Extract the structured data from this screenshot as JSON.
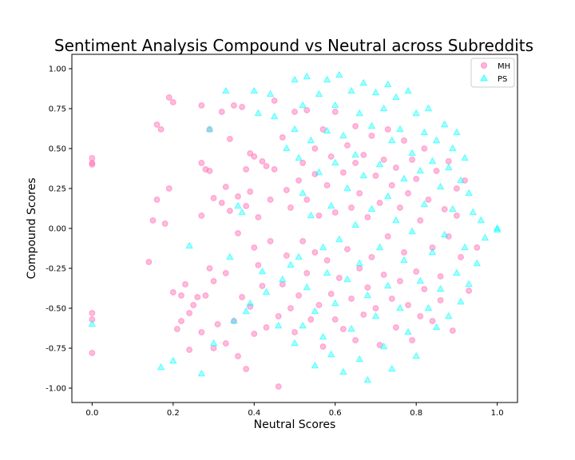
{
  "chart_data": {
    "type": "scatter",
    "title": "Sentiment Analysis Compound vs Neutral across Subreddits",
    "xlabel": "Neutral Scores",
    "ylabel": "Compound Scores",
    "xlim": [
      -0.05,
      1.05
    ],
    "ylim": [
      -1.09,
      1.09
    ],
    "xticks": [
      "0.0",
      "0.2",
      "0.4",
      "0.6",
      "0.8",
      "1.0"
    ],
    "yticks": [
      "-1.00",
      "-0.75",
      "-0.50",
      "-0.25",
      "0.00",
      "0.25",
      "0.50",
      "0.75",
      "1.00"
    ],
    "grid": false,
    "legend_position": "top-right",
    "series": [
      {
        "name": "MH",
        "marker": "circle",
        "color": "#ff69b4",
        "points": [
          [
            0.0,
            0.44
          ],
          [
            0.0,
            0.41
          ],
          [
            0.0,
            0.4
          ],
          [
            0.0,
            -0.53
          ],
          [
            0.0,
            -0.57
          ],
          [
            0.0,
            -0.78
          ],
          [
            0.14,
            -0.21
          ],
          [
            0.15,
            0.05
          ],
          [
            0.16,
            0.18
          ],
          [
            0.16,
            0.65
          ],
          [
            0.17,
            0.62
          ],
          [
            0.18,
            0.03
          ],
          [
            0.19,
            0.82
          ],
          [
            0.19,
            0.25
          ],
          [
            0.2,
            0.79
          ],
          [
            0.2,
            -0.4
          ],
          [
            0.21,
            -0.63
          ],
          [
            0.22,
            -0.58
          ],
          [
            0.22,
            -0.42
          ],
          [
            0.23,
            -0.35
          ],
          [
            0.24,
            -0.53
          ],
          [
            0.24,
            -0.76
          ],
          [
            0.25,
            -0.48
          ],
          [
            0.26,
            -0.43
          ],
          [
            0.27,
            0.77
          ],
          [
            0.27,
            0.41
          ],
          [
            0.27,
            0.08
          ],
          [
            0.27,
            -0.65
          ],
          [
            0.28,
            0.37
          ],
          [
            0.28,
            -0.42
          ],
          [
            0.29,
            0.62
          ],
          [
            0.29,
            0.36
          ],
          [
            0.29,
            -0.25
          ],
          [
            0.3,
            0.19
          ],
          [
            0.3,
            -0.33
          ],
          [
            0.3,
            -0.75
          ],
          [
            0.31,
            -0.6
          ],
          [
            0.32,
            0.73
          ],
          [
            0.32,
            0.16
          ],
          [
            0.33,
            0.26
          ],
          [
            0.33,
            -0.28
          ],
          [
            0.33,
            -0.72
          ],
          [
            0.34,
            0.56
          ],
          [
            0.34,
            0.11
          ],
          [
            0.35,
            0.77
          ],
          [
            0.35,
            -0.58
          ],
          [
            0.36,
            0.2
          ],
          [
            0.36,
            -0.03
          ],
          [
            0.36,
            -0.8
          ],
          [
            0.37,
            0.76
          ],
          [
            0.37,
            -0.43
          ],
          [
            0.38,
            0.37
          ],
          [
            0.38,
            0.14
          ],
          [
            0.38,
            -0.88
          ],
          [
            0.39,
            0.47
          ],
          [
            0.39,
            0.23
          ],
          [
            0.39,
            -0.49
          ],
          [
            0.4,
            0.45
          ],
          [
            0.4,
            -0.12
          ],
          [
            0.4,
            -0.66
          ],
          [
            0.41,
            0.07
          ],
          [
            0.41,
            -0.23
          ],
          [
            0.42,
            0.42
          ],
          [
            0.42,
            -0.36
          ],
          [
            0.43,
            0.39
          ],
          [
            0.43,
            -0.62
          ],
          [
            0.44,
            0.18
          ],
          [
            0.44,
            -0.08
          ],
          [
            0.45,
            0.8
          ],
          [
            0.45,
            0.37
          ],
          [
            0.46,
            -0.55
          ],
          [
            0.46,
            -0.99
          ],
          [
            0.47,
            0.57
          ],
          [
            0.47,
            -0.35
          ],
          [
            0.48,
            0.24
          ],
          [
            0.48,
            -0.17
          ],
          [
            0.49,
            -0.5
          ],
          [
            0.49,
            0.13
          ],
          [
            0.5,
            0.73
          ],
          [
            0.5,
            -0.65
          ],
          [
            0.51,
            0.3
          ],
          [
            0.51,
            -0.42
          ],
          [
            0.52,
            0.41
          ],
          [
            0.52,
            -0.08
          ],
          [
            0.53,
            0.74
          ],
          [
            0.53,
            0.18
          ],
          [
            0.53,
            -0.28
          ],
          [
            0.54,
            -0.57
          ],
          [
            0.55,
            0.5
          ],
          [
            0.55,
            0.34
          ],
          [
            0.55,
            -0.15
          ],
          [
            0.56,
            0.08
          ],
          [
            0.56,
            -0.48
          ],
          [
            0.57,
            0.62
          ],
          [
            0.57,
            -0.74
          ],
          [
            0.58,
            0.27
          ],
          [
            0.58,
            -0.2
          ],
          [
            0.59,
            0.45
          ],
          [
            0.59,
            -0.41
          ],
          [
            0.6,
            0.73
          ],
          [
            0.6,
            0.1
          ],
          [
            0.6,
            -0.57
          ],
          [
            0.61,
            -0.31
          ],
          [
            0.62,
            0.35
          ],
          [
            0.62,
            -0.63
          ],
          [
            0.63,
            0.52
          ],
          [
            0.63,
            -0.13
          ],
          [
            0.64,
            0.13
          ],
          [
            0.64,
            -0.44
          ],
          [
            0.65,
            0.64
          ],
          [
            0.65,
            0.41
          ],
          [
            0.65,
            -0.7
          ],
          [
            0.66,
            0.22
          ],
          [
            0.66,
            -0.25
          ],
          [
            0.67,
            0.46
          ],
          [
            0.67,
            -0.54
          ],
          [
            0.68,
            0.07
          ],
          [
            0.68,
            -0.37
          ],
          [
            0.69,
            0.58
          ],
          [
            0.69,
            -0.18
          ],
          [
            0.7,
            0.33
          ],
          [
            0.7,
            -0.5
          ],
          [
            0.71,
            0.16
          ],
          [
            0.71,
            -0.73
          ],
          [
            0.72,
            0.43
          ],
          [
            0.72,
            -0.29
          ],
          [
            0.73,
            0.62
          ],
          [
            0.73,
            -0.05
          ],
          [
            0.74,
            0.27
          ],
          [
            0.74,
            -0.44
          ],
          [
            0.75,
            0.38
          ],
          [
            0.75,
            -0.62
          ],
          [
            0.76,
            0.13
          ],
          [
            0.76,
            -0.33
          ],
          [
            0.77,
            0.55
          ],
          [
            0.77,
            -0.15
          ],
          [
            0.78,
            0.22
          ],
          [
            0.78,
            -0.48
          ],
          [
            0.79,
            0.43
          ],
          [
            0.79,
            -0.7
          ],
          [
            0.8,
            0.31
          ],
          [
            0.8,
            -0.27
          ],
          [
            0.81,
            0.05
          ],
          [
            0.81,
            -0.55
          ],
          [
            0.82,
            0.5
          ],
          [
            0.82,
            -0.38
          ],
          [
            0.83,
            0.18
          ],
          [
            0.84,
            -0.12
          ],
          [
            0.84,
            -0.58
          ],
          [
            0.85,
            0.36
          ],
          [
            0.86,
            -0.3
          ],
          [
            0.86,
            -0.45
          ],
          [
            0.87,
            0.12
          ],
          [
            0.88,
            0.42
          ],
          [
            0.88,
            -0.05
          ],
          [
            0.89,
            -0.64
          ],
          [
            0.9,
            0.25
          ],
          [
            0.9,
            0.08
          ],
          [
            0.91,
            -0.18
          ],
          [
            0.92,
            0.3
          ],
          [
            0.93,
            -0.39
          ],
          [
            0.95,
            -0.12
          ]
        ]
      },
      {
        "name": "PS",
        "marker": "triangle",
        "color": "#00ffff",
        "points": [
          [
            0.0,
            -0.6
          ],
          [
            0.17,
            -0.87
          ],
          [
            0.2,
            -0.83
          ],
          [
            0.24,
            -0.11
          ],
          [
            0.27,
            -0.91
          ],
          [
            0.29,
            0.62
          ],
          [
            0.3,
            -0.72
          ],
          [
            0.33,
            0.86
          ],
          [
            0.34,
            -0.18
          ],
          [
            0.35,
            -0.58
          ],
          [
            0.36,
            0.14
          ],
          [
            0.37,
            0.1
          ],
          [
            0.38,
            -0.52
          ],
          [
            0.39,
            -0.47
          ],
          [
            0.4,
            0.86
          ],
          [
            0.41,
            0.72
          ],
          [
            0.42,
            -0.27
          ],
          [
            0.43,
            -0.4
          ],
          [
            0.44,
            0.84
          ],
          [
            0.45,
            0.7
          ],
          [
            0.46,
            -0.61
          ],
          [
            0.47,
            -0.32
          ],
          [
            0.48,
            0.5
          ],
          [
            0.49,
            -0.23
          ],
          [
            0.5,
            0.93
          ],
          [
            0.5,
            0.62
          ],
          [
            0.5,
            -0.72
          ],
          [
            0.51,
            0.44
          ],
          [
            0.51,
            -0.18
          ],
          [
            0.52,
            0.77
          ],
          [
            0.52,
            0.22
          ],
          [
            0.52,
            -0.61
          ],
          [
            0.53,
            0.95
          ],
          [
            0.53,
            -0.37
          ],
          [
            0.54,
            0.55
          ],
          [
            0.54,
            0.08
          ],
          [
            0.55,
            -0.52
          ],
          [
            0.55,
            -0.86
          ],
          [
            0.56,
            0.84
          ],
          [
            0.56,
            0.35
          ],
          [
            0.57,
            -0.12
          ],
          [
            0.57,
            -0.68
          ],
          [
            0.58,
            0.93
          ],
          [
            0.58,
            0.61
          ],
          [
            0.58,
            -0.28
          ],
          [
            0.59,
            0.14
          ],
          [
            0.59,
            -0.79
          ],
          [
            0.6,
            0.77
          ],
          [
            0.6,
            0.41
          ],
          [
            0.6,
            -0.47
          ],
          [
            0.61,
            0.96
          ],
          [
            0.61,
            -0.07
          ],
          [
            0.62,
            0.58
          ],
          [
            0.62,
            -0.9
          ],
          [
            0.63,
            0.25
          ],
          [
            0.63,
            -0.32
          ],
          [
            0.64,
            0.86
          ],
          [
            0.64,
            -0.63
          ],
          [
            0.65,
            0.46
          ],
          [
            0.65,
            0.02
          ],
          [
            0.66,
            0.72
          ],
          [
            0.66,
            -0.22
          ],
          [
            0.66,
            -0.82
          ],
          [
            0.67,
            0.91
          ],
          [
            0.67,
            0.33
          ],
          [
            0.68,
            -0.42
          ],
          [
            0.68,
            -0.95
          ],
          [
            0.69,
            0.64
          ],
          [
            0.69,
            0.12
          ],
          [
            0.7,
            0.85
          ],
          [
            0.7,
            -0.55
          ],
          [
            0.71,
            0.4
          ],
          [
            0.71,
            -0.12
          ],
          [
            0.72,
            0.75
          ],
          [
            0.72,
            -0.74
          ],
          [
            0.73,
            0.9
          ],
          [
            0.73,
            0.2
          ],
          [
            0.73,
            -0.36
          ],
          [
            0.74,
            0.55
          ],
          [
            0.74,
            -0.88
          ],
          [
            0.75,
            0.82
          ],
          [
            0.75,
            0.05
          ],
          [
            0.76,
            -0.5
          ],
          [
            0.76,
            0.62
          ],
          [
            0.77,
            0.31
          ],
          [
            0.77,
            -0.2
          ],
          [
            0.78,
            0.86
          ],
          [
            0.78,
            -0.65
          ],
          [
            0.79,
            0.47
          ],
          [
            0.79,
            -0.02
          ],
          [
            0.8,
            0.72
          ],
          [
            0.8,
            -0.8
          ],
          [
            0.81,
            0.36
          ],
          [
            0.81,
            -0.33
          ],
          [
            0.82,
            0.6
          ],
          [
            0.82,
            0.15
          ],
          [
            0.83,
            -0.5
          ],
          [
            0.83,
            0.75
          ],
          [
            0.84,
            -0.15
          ],
          [
            0.84,
            0.42
          ],
          [
            0.85,
            -0.62
          ],
          [
            0.85,
            0.55
          ],
          [
            0.86,
            0.26
          ],
          [
            0.86,
            -0.38
          ],
          [
            0.87,
            0.65
          ],
          [
            0.87,
            -0.04
          ],
          [
            0.88,
            0.38
          ],
          [
            0.88,
            -0.55
          ],
          [
            0.89,
            0.5
          ],
          [
            0.89,
            0.12
          ],
          [
            0.9,
            -0.28
          ],
          [
            0.9,
            0.6
          ],
          [
            0.91,
            0.3
          ],
          [
            0.91,
            -0.46
          ],
          [
            0.92,
            0.44
          ],
          [
            0.92,
            -0.12
          ],
          [
            0.93,
            0.22
          ],
          [
            0.93,
            -0.35
          ],
          [
            0.94,
            0.1
          ],
          [
            0.95,
            -0.22
          ],
          [
            0.96,
            0.05
          ],
          [
            0.97,
            -0.06
          ],
          [
            1.0,
            0.0
          ],
          [
            1.0,
            -0.01
          ]
        ]
      }
    ]
  }
}
